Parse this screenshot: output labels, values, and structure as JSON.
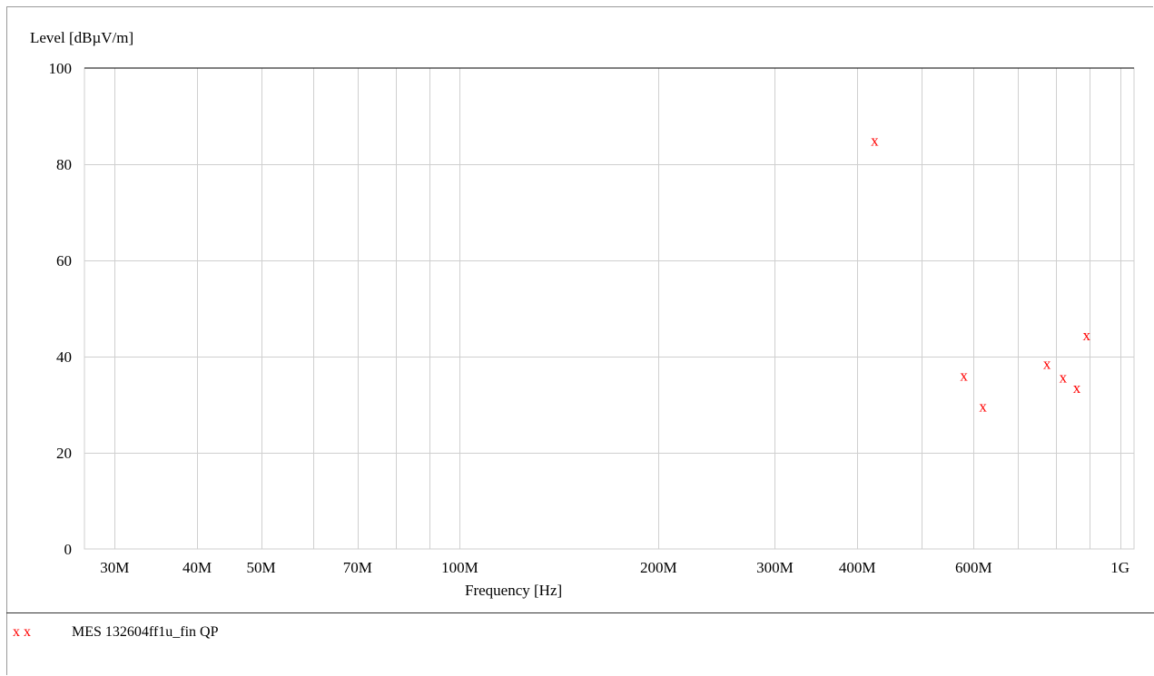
{
  "chart_data": {
    "type": "scatter",
    "title": "",
    "xlabel": "Frequency [Hz]",
    "ylabel": "Level [dBµV/m]",
    "x_scale": "log",
    "xlim": [
      27000000,
      1050000000
    ],
    "ylim": [
      0,
      100
    ],
    "grid": true,
    "x_ticks": [
      {
        "value": 30000000,
        "label": "30M"
      },
      {
        "value": 40000000,
        "label": "40M"
      },
      {
        "value": 50000000,
        "label": "50M"
      },
      {
        "value": 70000000,
        "label": "70M"
      },
      {
        "value": 100000000,
        "label": "100M"
      },
      {
        "value": 200000000,
        "label": "200M"
      },
      {
        "value": 300000000,
        "label": "300M"
      },
      {
        "value": 400000000,
        "label": "400M"
      },
      {
        "value": 600000000,
        "label": "600M"
      },
      {
        "value": 1000000000,
        "label": "1G"
      }
    ],
    "x_gridlines": [
      30000000,
      40000000,
      50000000,
      60000000,
      70000000,
      80000000,
      90000000,
      100000000,
      200000000,
      300000000,
      400000000,
      500000000,
      600000000,
      700000000,
      800000000,
      900000000,
      1000000000
    ],
    "y_ticks": [
      0,
      20,
      40,
      60,
      80,
      100
    ],
    "series": [
      {
        "name": "MES  132604ff1u_fin QP",
        "marker": "x",
        "color": "#ff0000",
        "points": [
          {
            "x": 425000000,
            "y": 84.8
          },
          {
            "x": 580000000,
            "y": 35.9
          },
          {
            "x": 620000000,
            "y": 29.5
          },
          {
            "x": 775000000,
            "y": 38.4
          },
          {
            "x": 820000000,
            "y": 35.6
          },
          {
            "x": 860000000,
            "y": 33.4
          },
          {
            "x": 890000000,
            "y": 44.3
          }
        ]
      }
    ],
    "legend": {
      "position": "bottom-left",
      "symbol": "x x",
      "label": "MES  132604ff1u_fin QP"
    }
  }
}
